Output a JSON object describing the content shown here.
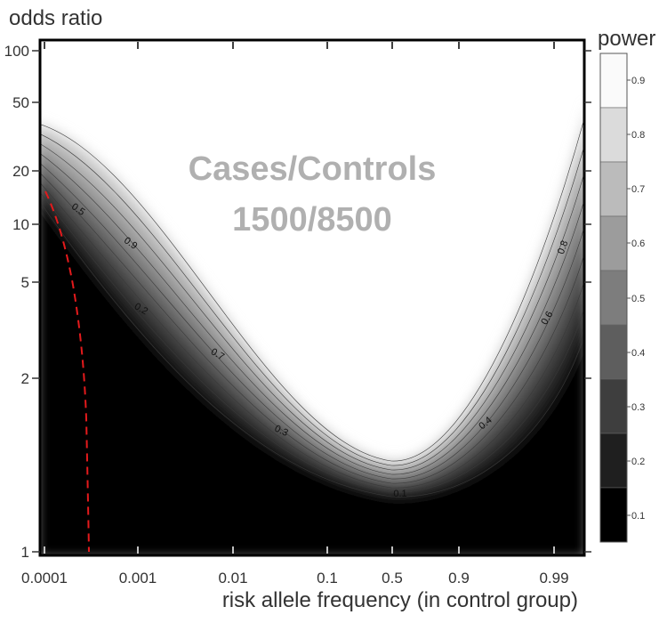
{
  "chart_data": {
    "type": "heatmap",
    "annotation_lines": [
      "Cases/Controls",
      "1500/8500"
    ],
    "ylabel": "odds ratio",
    "xlabel": "risk allele frequency (in control group)",
    "colorbar_title": "power",
    "x_ticks": [
      "0.0001",
      "0.001",
      "0.01",
      "0.1",
      "0.5",
      "0.9",
      "0.99"
    ],
    "y_ticks": [
      "1",
      "2",
      "5",
      "10",
      "20",
      "50",
      "100"
    ],
    "y_tick_values": [
      1,
      2,
      5,
      10,
      20,
      50,
      100
    ],
    "colorbar_ticks": [
      "0.1",
      "0.2",
      "0.3",
      "0.4",
      "0.5",
      "0.6",
      "0.7",
      "0.8",
      "0.9"
    ],
    "contour_levels": [
      0.1,
      0.2,
      0.3,
      0.4,
      0.5,
      0.6,
      0.7,
      0.8,
      0.9
    ],
    "contour_labels": [
      "0.5",
      "0.9",
      "0.2",
      "0.7",
      "0.3",
      "0.1",
      "0.4",
      "0.6",
      "0.8"
    ],
    "colors": {
      "low_power": "#000000",
      "high_power": "#ffffff",
      "reference_line": "#e41a1c",
      "annotation": "#b0b0b0"
    }
  }
}
